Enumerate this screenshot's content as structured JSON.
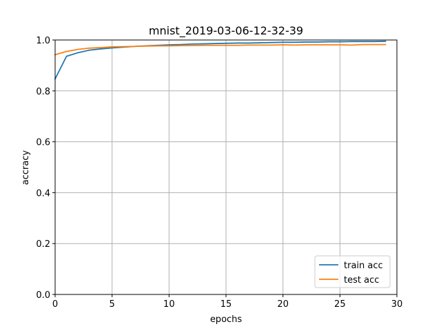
{
  "chart_data": {
    "type": "line",
    "title": "mnist_2019-03-06-12-32-39",
    "xlabel": "epochs",
    "ylabel": "accracy",
    "xlim": [
      0,
      30
    ],
    "ylim": [
      0.0,
      1.0
    ],
    "xticks": [
      0,
      5,
      10,
      15,
      20,
      25,
      30
    ],
    "yticks": [
      0.0,
      0.2,
      0.4,
      0.6,
      0.8,
      1.0
    ],
    "xtick_labels": [
      "0",
      "5",
      "10",
      "15",
      "20",
      "25",
      "30"
    ],
    "ytick_labels": [
      "0.0",
      "0.2",
      "0.4",
      "0.6",
      "0.8",
      "1.0"
    ],
    "grid": true,
    "legend_position": "bottom-right",
    "x": [
      0,
      1,
      2,
      3,
      4,
      5,
      6,
      7,
      8,
      9,
      10,
      11,
      12,
      13,
      14,
      15,
      16,
      17,
      18,
      19,
      20,
      21,
      22,
      23,
      24,
      25,
      26,
      27,
      28,
      29
    ],
    "series": [
      {
        "name": "train acc",
        "color": "#1f77b4",
        "values": [
          0.847,
          0.936,
          0.95,
          0.96,
          0.965,
          0.969,
          0.972,
          0.975,
          0.977,
          0.979,
          0.981,
          0.982,
          0.984,
          0.985,
          0.986,
          0.987,
          0.988,
          0.988,
          0.989,
          0.99,
          0.991,
          0.991,
          0.992,
          0.992,
          0.993,
          0.993,
          0.994,
          0.994,
          0.994,
          0.995
        ]
      },
      {
        "name": "test acc",
        "color": "#ff7f0e",
        "values": [
          0.942,
          0.955,
          0.963,
          0.968,
          0.97,
          0.973,
          0.974,
          0.975,
          0.976,
          0.977,
          0.977,
          0.978,
          0.978,
          0.979,
          0.979,
          0.979,
          0.979,
          0.98,
          0.98,
          0.98,
          0.981,
          0.98,
          0.981,
          0.981,
          0.981,
          0.981,
          0.98,
          0.982,
          0.982,
          0.982
        ]
      }
    ]
  }
}
